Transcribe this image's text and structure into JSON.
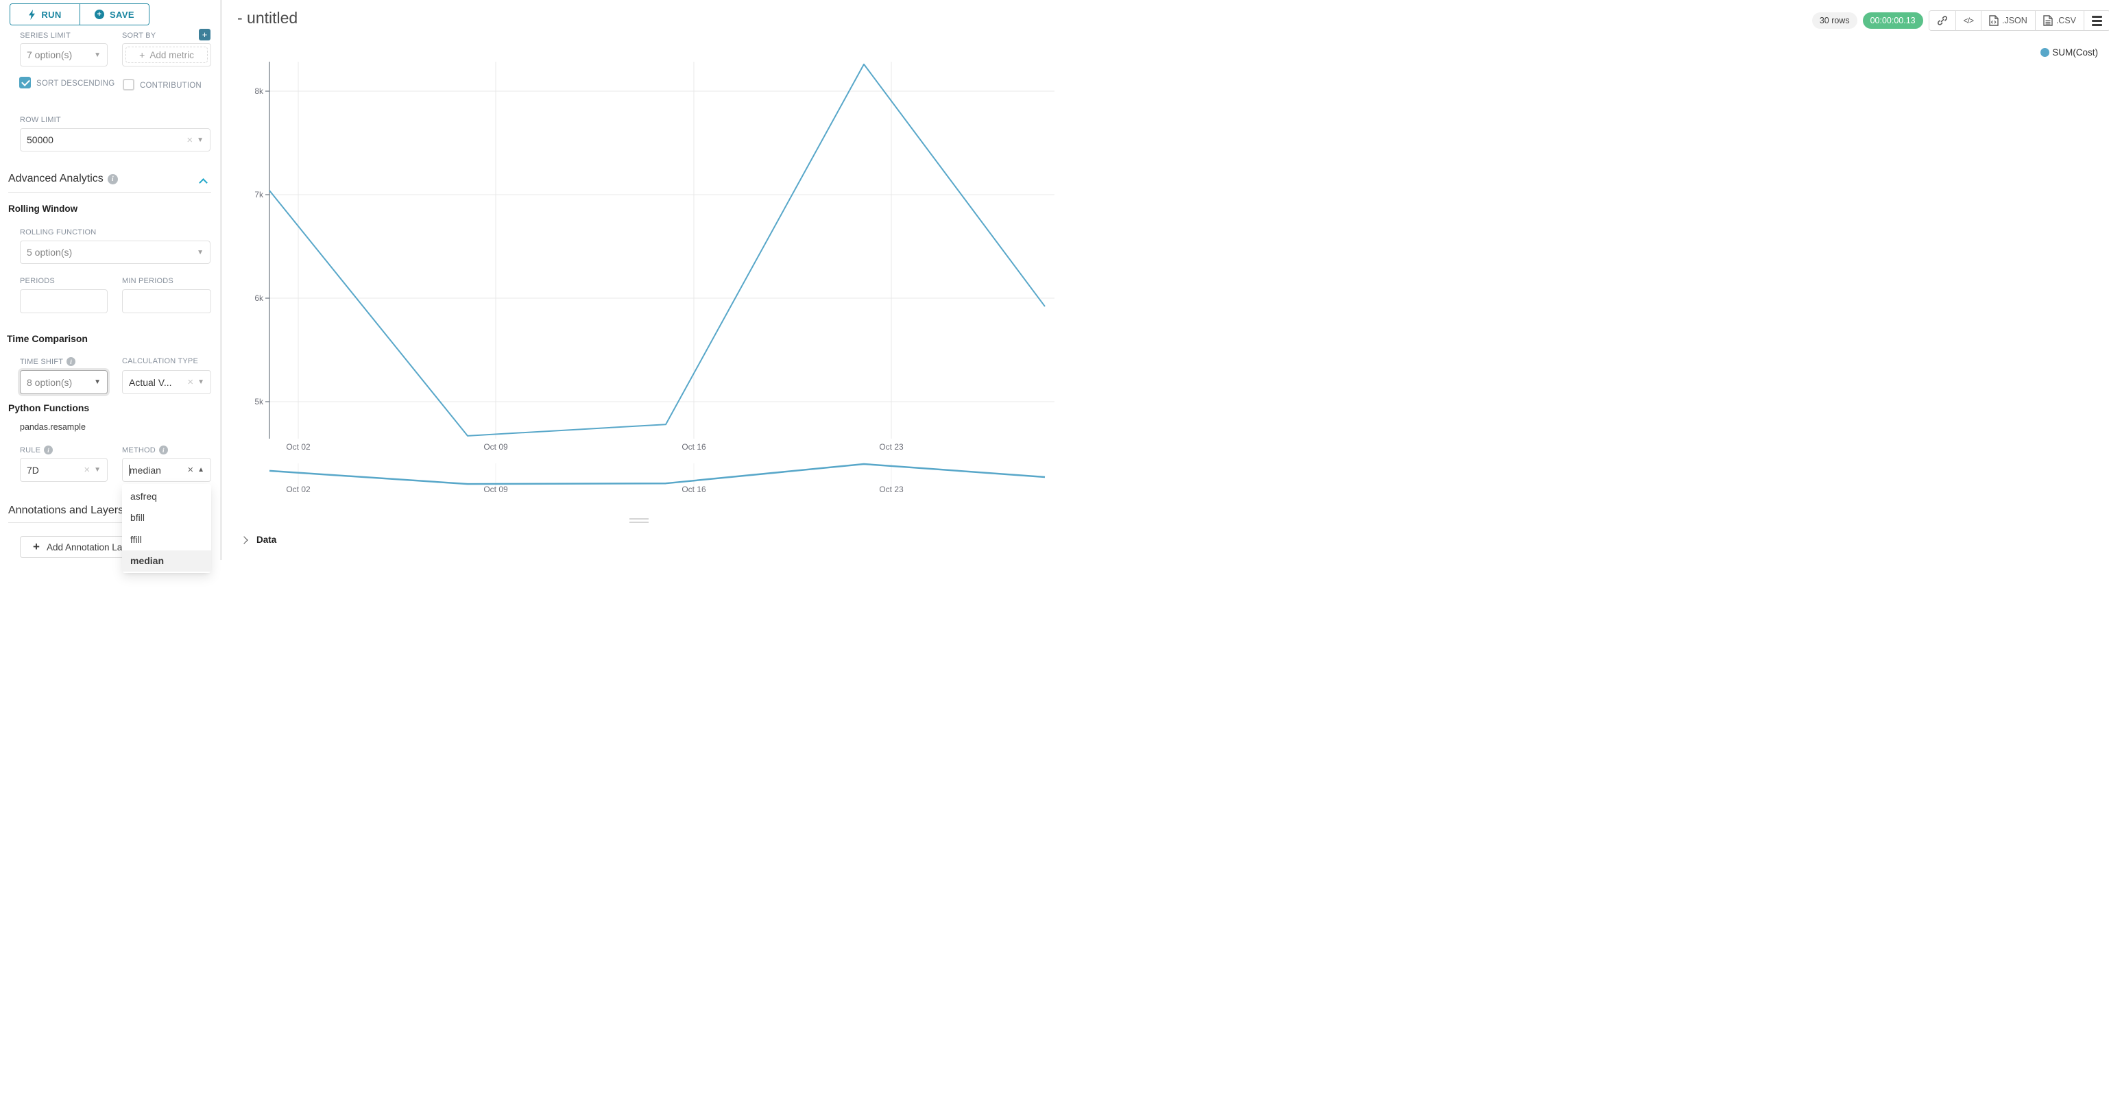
{
  "toolbar": {
    "run_label": "RUN",
    "save_label": "SAVE"
  },
  "controls": {
    "series_limit": {
      "label": "SERIES LIMIT",
      "value": "7 option(s)"
    },
    "sort_by": {
      "label": "SORT BY",
      "placeholder": "Add metric"
    },
    "sort_descending": {
      "label": "SORT DESCENDING",
      "checked": true
    },
    "contribution": {
      "label": "CONTRIBUTION",
      "checked": false
    },
    "row_limit": {
      "label": "ROW LIMIT",
      "value": "50000"
    },
    "advanced_analytics_title": "Advanced Analytics",
    "rolling_window_title": "Rolling Window",
    "rolling_function": {
      "label": "ROLLING FUNCTION",
      "value": "5 option(s)"
    },
    "periods": {
      "label": "PERIODS",
      "value": ""
    },
    "min_periods": {
      "label": "MIN PERIODS",
      "value": ""
    },
    "time_comparison_title": "Time Comparison",
    "time_shift": {
      "label": "TIME SHIFT",
      "value": "8 option(s)"
    },
    "calculation_type": {
      "label": "CALCULATION TYPE",
      "value": "Actual V..."
    },
    "python_functions_title": "Python Functions",
    "pandas_resample_label": "pandas.resample",
    "rule": {
      "label": "RULE",
      "value": "7D"
    },
    "method": {
      "label": "METHOD",
      "value": "median",
      "options": [
        "asfreq",
        "bfill",
        "ffill",
        "median"
      ],
      "selected_option": "median"
    },
    "annotations_title": "Annotations and Layers",
    "add_annotation_label": "Add Annotation Layer"
  },
  "chart_header": {
    "title": "- untitled",
    "rows_badge": "30 rows",
    "duration_badge": "00:00:00.13",
    "export_json_label": ".JSON",
    "export_csv_label": ".CSV"
  },
  "data_panel": {
    "title": "Data"
  },
  "colors": {
    "accent_teal": "#1985a0",
    "checkbox_teal": "#50a5c4",
    "add_button_teal": "#3d7f99",
    "success_green": "#5ac189",
    "series_blue": "#58a7c9"
  },
  "chart_data": {
    "type": "line",
    "title": "",
    "legend": [
      "SUM(Cost)"
    ],
    "legend_position": "top-right",
    "grid": true,
    "x": [
      "Oct 01",
      "Oct 08",
      "Oct 15",
      "Oct 22",
      "Oct 29"
    ],
    "x_tick_labels": [
      "Oct 02",
      "Oct 09",
      "Oct 16",
      "Oct 23"
    ],
    "series": [
      {
        "name": "SUM(Cost)",
        "values": [
          7040,
          4670,
          4780,
          8260,
          5920
        ]
      }
    ],
    "y_ticks": [
      {
        "value": 5000,
        "label": "5k"
      },
      {
        "value": 6000,
        "label": "6k"
      },
      {
        "value": 7000,
        "label": "7k"
      },
      {
        "value": 8000,
        "label": "8k"
      }
    ],
    "ylim": [
      4640,
      8280
    ],
    "color": "#58a7c9",
    "has_mini_context_chart": true
  }
}
